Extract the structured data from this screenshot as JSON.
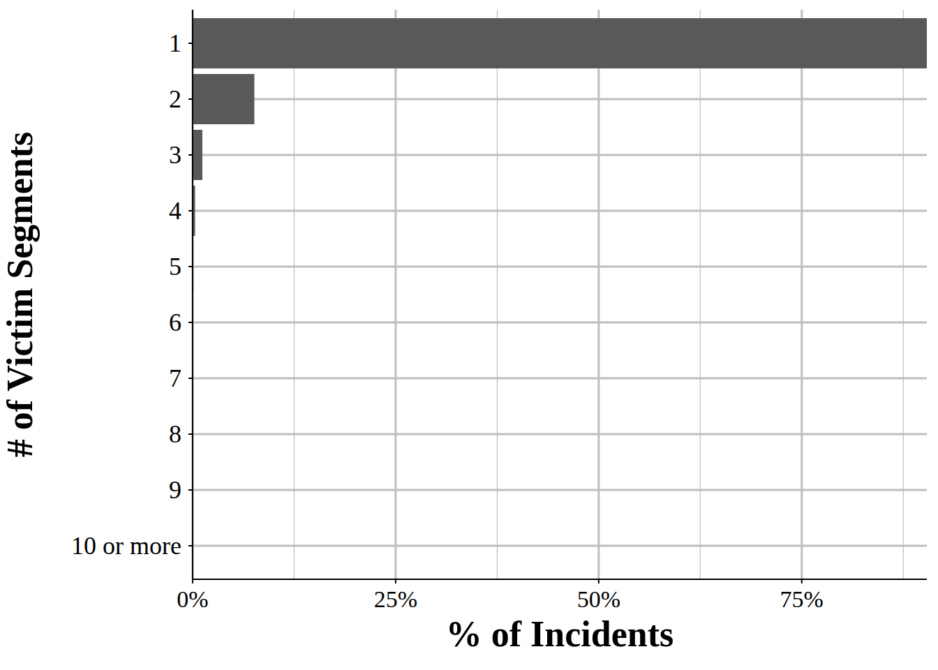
{
  "chart_data": {
    "type": "bar",
    "orientation": "horizontal",
    "x_label": "% of Incidents",
    "y_label": "# of Victim Segments",
    "categories": [
      "1",
      "2",
      "3",
      "4",
      "5",
      "6",
      "7",
      "8",
      "9",
      "10 or more"
    ],
    "values": [
      90.4,
      7.6,
      1.2,
      0.3,
      0.1,
      0.03,
      0.01,
      0.005,
      0.003,
      0.002
    ],
    "color": "#595959",
    "xlim": [
      0,
      90.4
    ],
    "xticks": [
      {
        "value": 0,
        "label": "0%"
      },
      {
        "value": 25,
        "label": "25%"
      },
      {
        "value": 50,
        "label": "50%"
      },
      {
        "value": 75,
        "label": "75%"
      }
    ],
    "grid": true
  }
}
